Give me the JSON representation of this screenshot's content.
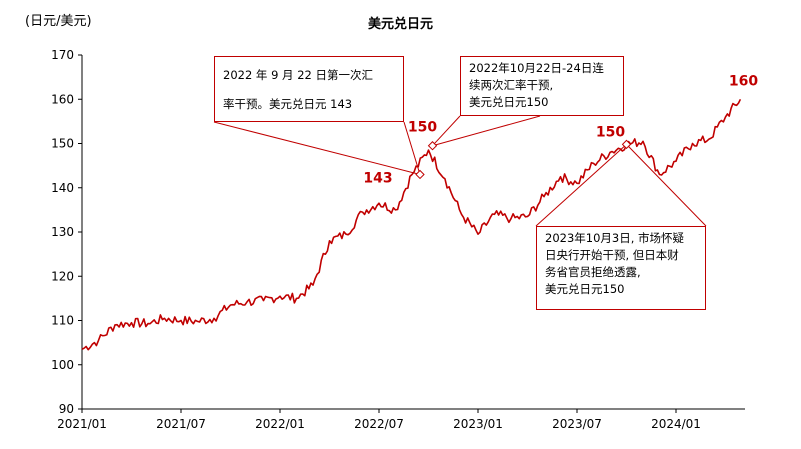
{
  "chart_data": {
    "type": "line",
    "title": "美元兑日元",
    "ylabel": "(日元/美元)",
    "xlabel": "",
    "ylim": [
      90,
      170
    ],
    "yticks": [
      90,
      100,
      110,
      120,
      130,
      140,
      150,
      160,
      170
    ],
    "xticks": [
      "2021/01",
      "2021/07",
      "2022/01",
      "2022/07",
      "2023/01",
      "2023/07",
      "2024/01"
    ],
    "grid": false,
    "line_color": "#c00000",
    "series": [
      {
        "values_by_month": [
          [
            "2021/01",
            103.5
          ],
          [
            "2021/02",
            105.5
          ],
          [
            "2021/03",
            109.0
          ],
          [
            "2021/04",
            109.5
          ],
          [
            "2021/05",
            109.3
          ],
          [
            "2021/06",
            110.5
          ],
          [
            "2021/07",
            110.0
          ],
          [
            "2021/08",
            109.8
          ],
          [
            "2021/09",
            110.5
          ],
          [
            "2021/10",
            113.5
          ],
          [
            "2021/11",
            114.2
          ],
          [
            "2021/12",
            114.5
          ],
          [
            "2022/01",
            115.5
          ],
          [
            "2022/02",
            115.0
          ],
          [
            "2022/03",
            118.0
          ],
          [
            "2022/04",
            128.0
          ],
          [
            "2022/05",
            129.5
          ],
          [
            "2022/06",
            134.5
          ],
          [
            "2022/07",
            136.5
          ],
          [
            "2022/08",
            135.0
          ],
          [
            "2022/09",
            143.0
          ],
          [
            "2022/10",
            148.5
          ],
          [
            "2022/11",
            142.0
          ],
          [
            "2022/12",
            134.0
          ],
          [
            "2023/01",
            129.5
          ],
          [
            "2023/02",
            134.0
          ],
          [
            "2023/03",
            133.0
          ],
          [
            "2023/04",
            133.5
          ],
          [
            "2023/05",
            138.0
          ],
          [
            "2023/06",
            142.5
          ],
          [
            "2023/07",
            141.0
          ],
          [
            "2023/08",
            145.5
          ],
          [
            "2023/09",
            148.0
          ],
          [
            "2023/10",
            149.8
          ],
          [
            "2023/11",
            150.5
          ],
          [
            "2023/12",
            143.0
          ],
          [
            "2024/01",
            146.0
          ],
          [
            "2024/02",
            150.0
          ],
          [
            "2024/03",
            151.0
          ],
          [
            "2024/04",
            156.0
          ],
          [
            "2024/04 end",
            160.0
          ]
        ]
      }
    ],
    "point_labels": [
      {
        "text": "143",
        "x": "2022/09",
        "y": 143
      },
      {
        "text": "150",
        "x": "2022/10",
        "y": 150
      },
      {
        "text": "150",
        "x": "2023/10",
        "y": 150
      },
      {
        "text": "160",
        "x": "2024/04",
        "y": 160
      }
    ],
    "annotations": [
      {
        "date": "2022/09",
        "y": 143,
        "lines": [
          "2022 年 9 月 22 日第一次汇",
          "率干预。美元兑日元 143"
        ]
      },
      {
        "date": "2022/10",
        "y": 149.5,
        "lines": [
          "2022年10月22日-24日连",
          "续两次汇率干预,",
          "美元兑日元150"
        ]
      },
      {
        "date": "2023/10",
        "y": 149.8,
        "lines": [
          "2023年10月3日, 市场怀疑",
          "日央行开始干预, 但日本财",
          "务省官员拒绝透露,",
          "美元兑日元150"
        ]
      }
    ]
  }
}
